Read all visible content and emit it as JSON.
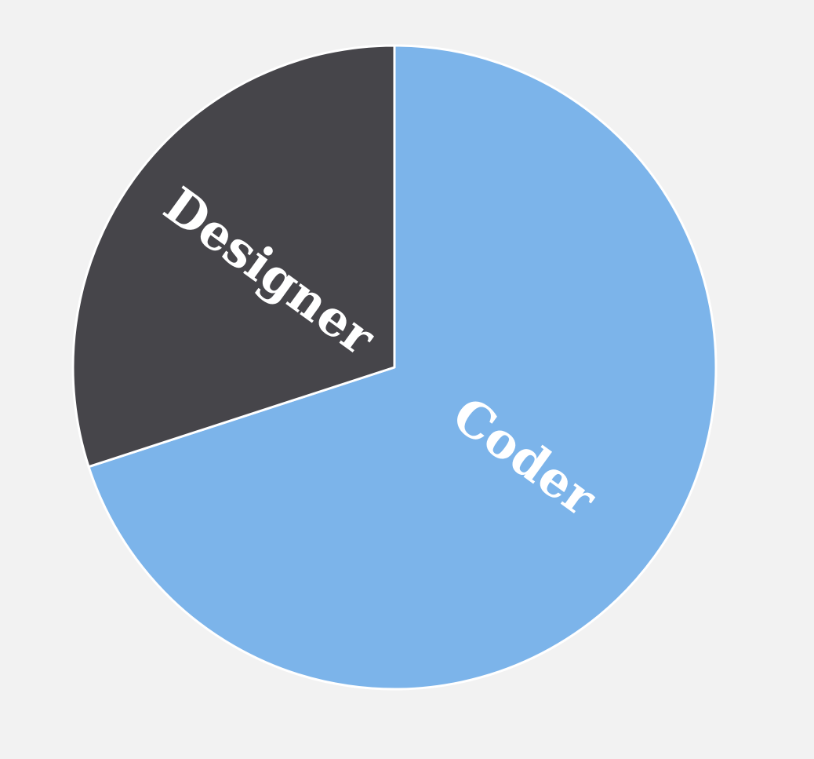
{
  "chart_data": {
    "type": "pie",
    "slices": [
      {
        "label": "Coder",
        "value": 70,
        "color": "#7cb4ea"
      },
      {
        "label": "Designer",
        "value": 30,
        "color": "#46454a"
      }
    ],
    "start_angle_deg": 0,
    "direction": "clockwise",
    "slice_border_color": "#ffffff",
    "legend": "none",
    "background": "#f2f2f2"
  }
}
